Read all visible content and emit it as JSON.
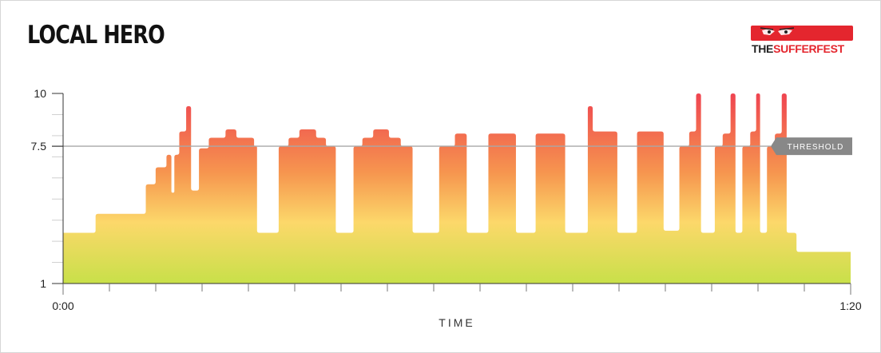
{
  "header": {
    "title": "LOCAL HERO"
  },
  "logo": {
    "part1": "THE",
    "part2": "SUFFERFEST",
    "icon": "eyes-icon",
    "color": "#e4262e"
  },
  "chart_data": {
    "type": "area",
    "title": "LOCAL HERO",
    "xlabel": "TIME",
    "ylabel": "",
    "xlim": [
      0,
      80
    ],
    "ylim": [
      1,
      10
    ],
    "x_tick_labels": [
      "0:00",
      "1:20"
    ],
    "y_tick_labels": [
      {
        "value": 10,
        "label": "10"
      },
      {
        "value": 7.5,
        "label": "7.5"
      },
      {
        "value": 1,
        "label": "1"
      }
    ],
    "threshold": {
      "value": 7.5,
      "label": "THRESHOLD"
    },
    "gradient": {
      "top": "#ef4450",
      "upper": "#f6964f",
      "middle": "#fcd86a",
      "bottom": "#c8e049"
    },
    "steps": [
      [
        0,
        3.4
      ],
      [
        3.3,
        4.3
      ],
      [
        8.4,
        5.7
      ],
      [
        9.4,
        6.5
      ],
      [
        10.5,
        7.1
      ],
      [
        11.0,
        5.3
      ],
      [
        11.3,
        7.1
      ],
      [
        11.8,
        8.2
      ],
      [
        12.5,
        9.4
      ],
      [
        13.0,
        5.4
      ],
      [
        13.8,
        7.4
      ],
      [
        14.8,
        7.9
      ],
      [
        16.5,
        8.3
      ],
      [
        17.6,
        7.9
      ],
      [
        19.4,
        7.5
      ],
      [
        19.7,
        3.4
      ],
      [
        21.9,
        7.5
      ],
      [
        22.9,
        7.9
      ],
      [
        24.0,
        8.3
      ],
      [
        25.7,
        7.9
      ],
      [
        26.7,
        7.5
      ],
      [
        27.7,
        3.4
      ],
      [
        29.5,
        7.5
      ],
      [
        30.4,
        7.9
      ],
      [
        31.5,
        8.3
      ],
      [
        33.1,
        7.9
      ],
      [
        34.3,
        7.5
      ],
      [
        35.5,
        3.4
      ],
      [
        38.2,
        7.5
      ],
      [
        39.8,
        8.1
      ],
      [
        41.0,
        3.4
      ],
      [
        43.2,
        8.1
      ],
      [
        46.0,
        3.4
      ],
      [
        48.0,
        8.1
      ],
      [
        51.0,
        3.4
      ],
      [
        53.3,
        9.4
      ],
      [
        53.8,
        8.2
      ],
      [
        56.3,
        3.4
      ],
      [
        58.3,
        8.2
      ],
      [
        61.0,
        3.5
      ],
      [
        62.6,
        7.5
      ],
      [
        63.6,
        8.2
      ],
      [
        64.3,
        10.0
      ],
      [
        64.8,
        3.4
      ],
      [
        66.2,
        7.5
      ],
      [
        67.0,
        8.1
      ],
      [
        67.8,
        10.0
      ],
      [
        68.3,
        3.4
      ],
      [
        69.0,
        7.5
      ],
      [
        69.8,
        8.2
      ],
      [
        70.4,
        10.0
      ],
      [
        70.8,
        3.4
      ],
      [
        71.5,
        7.5
      ],
      [
        72.3,
        8.1
      ],
      [
        73.0,
        10.0
      ],
      [
        73.5,
        3.4
      ],
      [
        74.5,
        2.5
      ],
      [
        80,
        2.5
      ]
    ]
  }
}
